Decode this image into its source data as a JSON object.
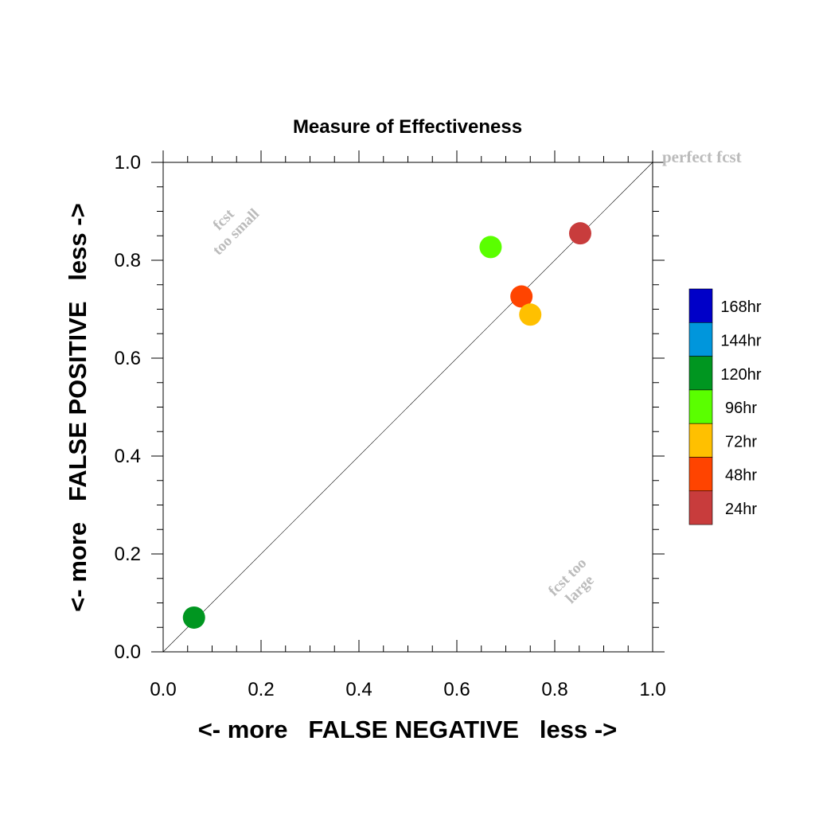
{
  "chart_data": {
    "type": "scatter",
    "title": "Measure of Effectiveness",
    "xlabel": "<- more   FALSE NEGATIVE   less ->",
    "ylabel": "<- more   FALSE POSITIVE   less ->",
    "xlim": [
      0,
      1
    ],
    "ylim": [
      0,
      1
    ],
    "x_ticks": [
      "0.0",
      "0.2",
      "0.4",
      "0.6",
      "0.8",
      "1.0"
    ],
    "y_ticks": [
      "0.0",
      "0.2",
      "0.4",
      "0.6",
      "0.8",
      "1.0"
    ],
    "grid": false,
    "diagonal_line": true,
    "annotations": {
      "perfect": "perfect fcst",
      "too_small_1": "fcst",
      "too_small_2": "too small",
      "too_large_1": "fcst too",
      "too_large_2": "large"
    },
    "legend": {
      "placement": "right",
      "entries": [
        {
          "label": "168hr",
          "color": "#0000c8"
        },
        {
          "label": "144hr",
          "color": "#0096dc"
        },
        {
          "label": "120hr",
          "color": "#009620"
        },
        {
          "label": "96hr",
          "color": "#5aff00"
        },
        {
          "label": "72hr",
          "color": "#ffc000"
        },
        {
          "label": "48hr",
          "color": "#ff4400"
        },
        {
          "label": "24hr",
          "color": "#c83c3c"
        }
      ]
    },
    "points": [
      {
        "label": "24hr",
        "x": 0.852,
        "y": 0.855,
        "color": "#c83c3c"
      },
      {
        "label": "48hr",
        "x": 0.732,
        "y": 0.726,
        "color": "#ff4400"
      },
      {
        "label": "72hr",
        "x": 0.75,
        "y": 0.689,
        "color": "#ffc000"
      },
      {
        "label": "96hr",
        "x": 0.669,
        "y": 0.827,
        "color": "#5aff00"
      },
      {
        "label": "120hr",
        "x": 0.063,
        "y": 0.07,
        "color": "#009620"
      }
    ]
  }
}
